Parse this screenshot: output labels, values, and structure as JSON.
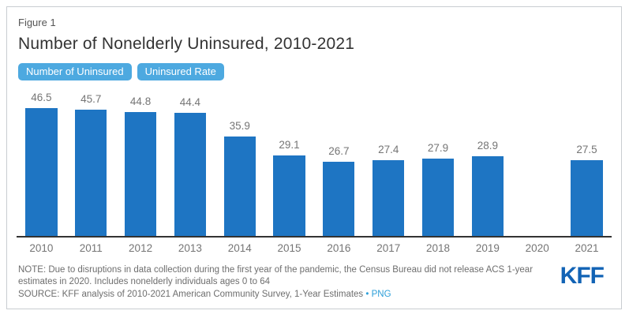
{
  "figure": {
    "label": "Figure 1",
    "title": "Number of Nonelderly Uninsured, 2010-2021"
  },
  "toggles": [
    {
      "label": "Number of Uninsured",
      "active": true
    },
    {
      "label": "Uninsured Rate",
      "active": false
    }
  ],
  "chart_data": {
    "type": "bar",
    "categories": [
      "2010",
      "2011",
      "2012",
      "2013",
      "2014",
      "2015",
      "2016",
      "2017",
      "2018",
      "2019",
      "2020",
      "2021"
    ],
    "values": [
      46.5,
      45.7,
      44.8,
      44.4,
      35.9,
      29.1,
      26.7,
      27.4,
      27.9,
      28.9,
      null,
      27.5
    ],
    "title": "Number of Nonelderly Uninsured, 2010-2021",
    "xlabel": "",
    "ylabel": "",
    "ylim": [
      0,
      50
    ],
    "grid": false,
    "legend": null,
    "bar_color": "#1e75c3",
    "value_label_color": "#757575",
    "axis_color": "#333333"
  },
  "footer": {
    "note": "NOTE: Due to disruptions in data collection during the first year of the pandemic, the Census Bureau did not release ACS 1-year estimates in 2020. Includes nonelderly individuals ages 0 to 64",
    "source": "SOURCE: KFF analysis of 2010-2021 American Community Survey, 1-Year Estimates",
    "separator": "•",
    "png_link": "PNG",
    "logo": "KFF"
  },
  "colors": {
    "bar": "#1e75c3",
    "toggle_bg": "#4da9e0",
    "toggle_text": "#ffffff",
    "link": "#2d9fd9",
    "logo": "#1263b5",
    "axis": "#333333",
    "label_gray": "#757575",
    "card_border": "#c9cdd1"
  }
}
